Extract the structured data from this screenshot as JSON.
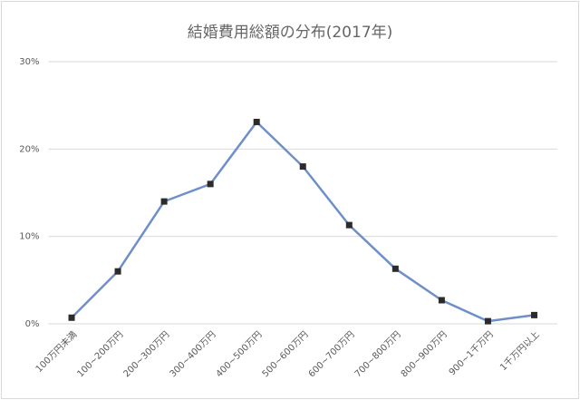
{
  "chart_data": {
    "type": "line",
    "title": "結婚費用総額の分布(2017年)",
    "categories": [
      "100万円未満",
      "100~200万円",
      "200~300万円",
      "300~400万円",
      "400~500万円",
      "500~600万円",
      "600~700万円",
      "700~800万円",
      "800~900万円",
      "900~1千万円",
      "1千万円以上"
    ],
    "values": [
      0.7,
      6.0,
      14.0,
      16.0,
      23.1,
      18.0,
      11.3,
      6.3,
      2.7,
      0.3,
      1.0
    ],
    "color": "#6f8fca",
    "marker_color": "#2b2b2b",
    "ylim": [
      0,
      30
    ],
    "yticks": [
      {
        "value": 0,
        "label": "0%"
      },
      {
        "value": 10,
        "label": "10%"
      },
      {
        "value": 20,
        "label": "20%"
      },
      {
        "value": 30,
        "label": "30%"
      }
    ],
    "grid": true
  }
}
